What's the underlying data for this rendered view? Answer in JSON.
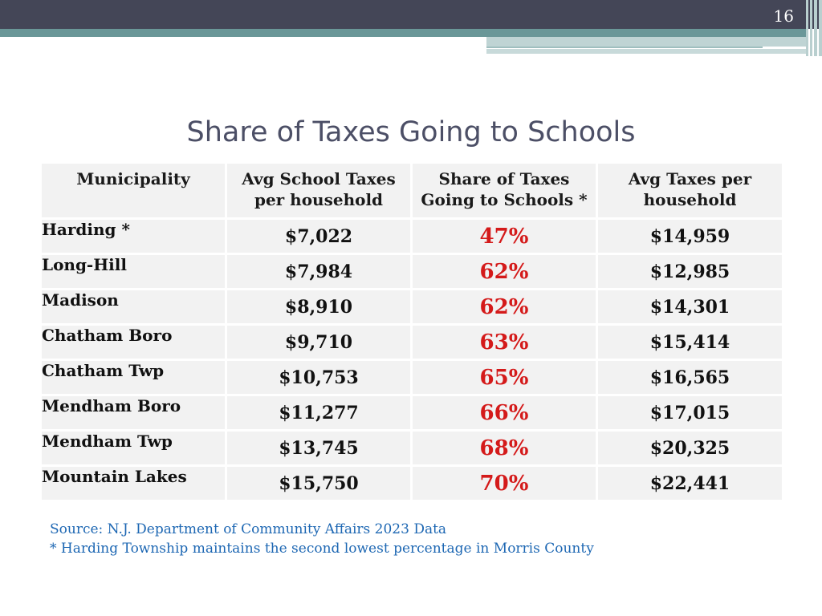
{
  "slide": {
    "page_number": "16"
  },
  "title": "Share of Taxes Going to Schools",
  "table": {
    "headers": [
      [
        "Municipality"
      ],
      [
        "Avg School Taxes",
        "per household"
      ],
      [
        "Share of Taxes",
        "Going to Schools *"
      ],
      [
        "Avg Taxes per",
        "household"
      ]
    ],
    "rows": [
      [
        "Harding *",
        "$7,022",
        "47%",
        "$14,959"
      ],
      [
        "Long-Hill",
        "$7,984",
        "62%",
        "$12,985"
      ],
      [
        "Madison",
        "$8,910",
        "62%",
        "$14,301"
      ],
      [
        "Chatham Boro",
        "$9,710",
        "63%",
        "$15,414"
      ],
      [
        "Chatham Twp",
        "$10,753",
        "65%",
        "$16,565"
      ],
      [
        "Mendham Boro",
        "$11,277",
        "66%",
        "$17,015"
      ],
      [
        "Mendham Twp",
        "$13,745",
        "68%",
        "$20,325"
      ],
      [
        "Mountain Lakes",
        "$15,750",
        "70%",
        "$22,441"
      ]
    ]
  },
  "footnotes": {
    "source": "Source: N.J. Department of Community Affairs 2023 Data",
    "note": "* Harding Township maintains the second lowest percentage in Morris County"
  },
  "colors": {
    "header_bar": "#444657",
    "accent_teal": "#6a9798",
    "percent_red": "#d41a1a",
    "footnote_blue": "#1d67b3",
    "title": "#4c4f66"
  }
}
